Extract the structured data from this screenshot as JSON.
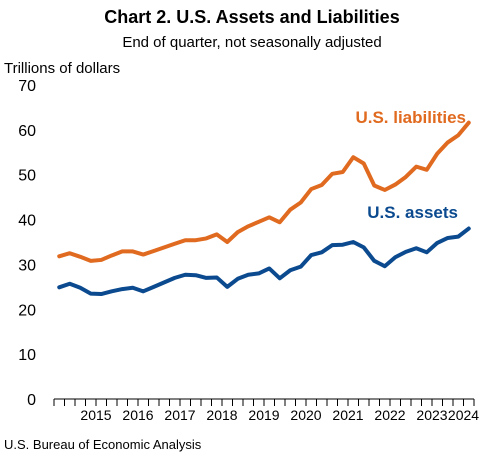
{
  "chart_data": {
    "type": "line",
    "title": "Chart 2. U.S. Assets and Liabilities",
    "subtitle": "End of quarter, not seasonally adjusted",
    "ylabel": "Trillions of dollars",
    "xlabel": "",
    "ylim": [
      0,
      70
    ],
    "yticks": [
      0,
      10,
      20,
      30,
      40,
      50,
      60,
      70
    ],
    "year_labels": [
      "2015",
      "2016",
      "2017",
      "2018",
      "2019",
      "2020",
      "2021",
      "2022",
      "2023",
      "2024"
    ],
    "quarters": [
      "2014Q3",
      "2014Q4",
      "2015Q1",
      "2015Q2",
      "2015Q3",
      "2015Q4",
      "2016Q1",
      "2016Q2",
      "2016Q3",
      "2016Q4",
      "2017Q1",
      "2017Q2",
      "2017Q3",
      "2017Q4",
      "2018Q1",
      "2018Q2",
      "2018Q3",
      "2018Q4",
      "2019Q1",
      "2019Q2",
      "2019Q3",
      "2019Q4",
      "2020Q1",
      "2020Q2",
      "2020Q3",
      "2020Q4",
      "2021Q1",
      "2021Q2",
      "2021Q3",
      "2021Q4",
      "2022Q1",
      "2022Q2",
      "2022Q3",
      "2022Q4",
      "2023Q1",
      "2023Q2",
      "2023Q3",
      "2023Q4",
      "2024Q1",
      "2024Q2"
    ],
    "grid": false,
    "legend": "none",
    "series": [
      {
        "name": "U.S. liabilities",
        "color": "#E06A1F",
        "values": [
          31.8,
          32.5,
          31.7,
          30.8,
          31.0,
          32.0,
          32.9,
          32.9,
          32.2,
          33.0,
          33.8,
          34.6,
          35.4,
          35.4,
          35.8,
          36.7,
          35.0,
          37.2,
          38.5,
          39.5,
          40.5,
          39.4,
          42.2,
          43.8,
          46.8,
          47.7,
          50.2,
          50.6,
          53.9,
          52.5,
          47.6,
          46.6,
          47.8,
          49.5,
          51.8,
          51.1,
          54.7,
          57.2,
          58.8,
          61.6
        ]
      },
      {
        "name": "U.S. assets",
        "color": "#0B4A8F",
        "values": [
          24.9,
          25.7,
          24.8,
          23.5,
          23.4,
          24.0,
          24.5,
          24.8,
          24.0,
          25.0,
          26.0,
          27.0,
          27.7,
          27.6,
          27.0,
          27.1,
          25.0,
          26.8,
          27.7,
          28.0,
          29.1,
          26.9,
          28.7,
          29.5,
          32.1,
          32.7,
          34.3,
          34.4,
          35.0,
          33.8,
          30.8,
          29.6,
          31.6,
          32.8,
          33.6,
          32.7,
          34.8,
          35.9,
          36.2,
          38.0
        ]
      }
    ]
  },
  "footer": {
    "source": "U.S. Bureau of Economic Analysis"
  }
}
